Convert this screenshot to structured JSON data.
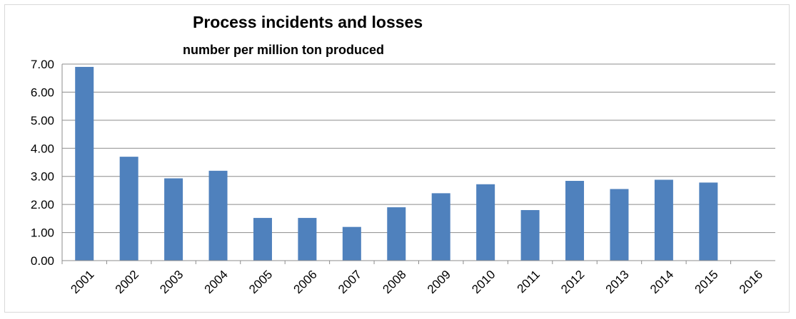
{
  "chart_data": {
    "type": "bar",
    "title": "Process incidents and losses",
    "subtitle": "number per million ton produced",
    "xlabel": "",
    "ylabel": "",
    "categories": [
      "2001",
      "2002",
      "2003",
      "2004",
      "2005",
      "2006",
      "2007",
      "2008",
      "2009",
      "2010",
      "2011",
      "2012",
      "2013",
      "2014",
      "2015",
      "2016"
    ],
    "series": [
      {
        "values": [
          6.9,
          3.7,
          2.93,
          3.2,
          1.52,
          1.52,
          1.2,
          1.9,
          2.4,
          2.72,
          1.8,
          2.84,
          2.55,
          2.88,
          2.78,
          null
        ]
      }
    ],
    "ylim": [
      0,
      7
    ],
    "yticks": [
      "0.00",
      "1.00",
      "2.00",
      "3.00",
      "4.00",
      "5.00",
      "6.00",
      "7.00"
    ],
    "grid": true,
    "legend": "none",
    "colors": {
      "bar": "#4f81bd",
      "grid": "#8c8c8c",
      "axis": "#8c8c8c"
    }
  }
}
